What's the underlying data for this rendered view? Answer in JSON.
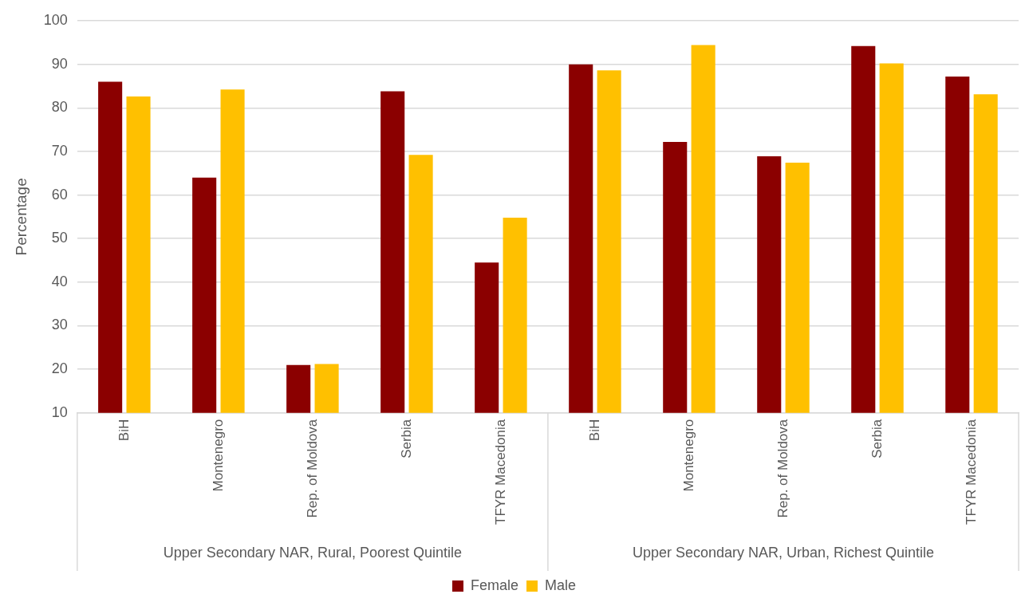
{
  "chart_data": {
    "type": "bar",
    "ylabel": "Percentage",
    "categories": [
      "BiH",
      "Montenegro",
      "Rep. of Moldova",
      "Serbia",
      "TFYR Macedonia",
      "BiH",
      "Montenegro",
      "Rep. of Moldova",
      "Serbia",
      "TFYR Macedonia"
    ],
    "series": [
      {
        "name": "Female",
        "color": "#8b0000",
        "values": [
          86,
          64,
          21,
          83.8,
          44.5,
          90,
          72.2,
          68.9,
          94.2,
          87.2
        ]
      },
      {
        "name": "Male",
        "color": "#ffc000",
        "values": [
          82.6,
          84.2,
          21.2,
          69.2,
          54.8,
          88.6,
          94.4,
          67.4,
          90.2,
          83.1
        ]
      }
    ],
    "annotations": [
      "Upper Secondary NAR, Rural, Poorest Quintile",
      "Upper Secondary NAR, Urban, Richest Quintile"
    ],
    "ylim": [
      10,
      100
    ],
    "yticks": [
      10,
      20,
      30,
      40,
      50,
      60,
      70,
      80,
      90,
      100
    ],
    "grid": "y",
    "legend": "bottom"
  }
}
